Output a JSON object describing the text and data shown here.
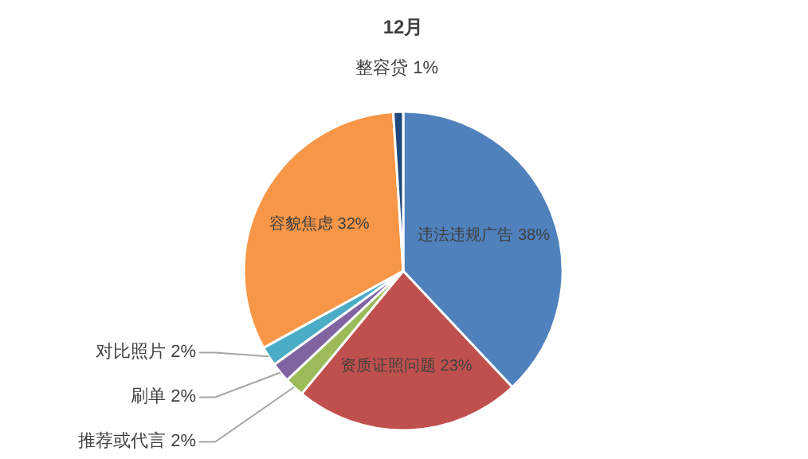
{
  "chart_data": {
    "type": "pie",
    "title": "12月",
    "categories": [
      "违法违规广告",
      "资质证照问题",
      "推荐或代言",
      "刷单",
      "对比照片",
      "容貌焦虑",
      "整容贷"
    ],
    "values": [
      38,
      23,
      2,
      2,
      2,
      32,
      1
    ],
    "value_labels": [
      "38%",
      "23%",
      "2%",
      "2%",
      "2%",
      "32%",
      "1%"
    ],
    "colors": [
      "#4f81bd",
      "#c0504d",
      "#9bbb59",
      "#8064a2",
      "#4bacc6",
      "#f79646",
      "#1f497d"
    ],
    "legend": false
  }
}
